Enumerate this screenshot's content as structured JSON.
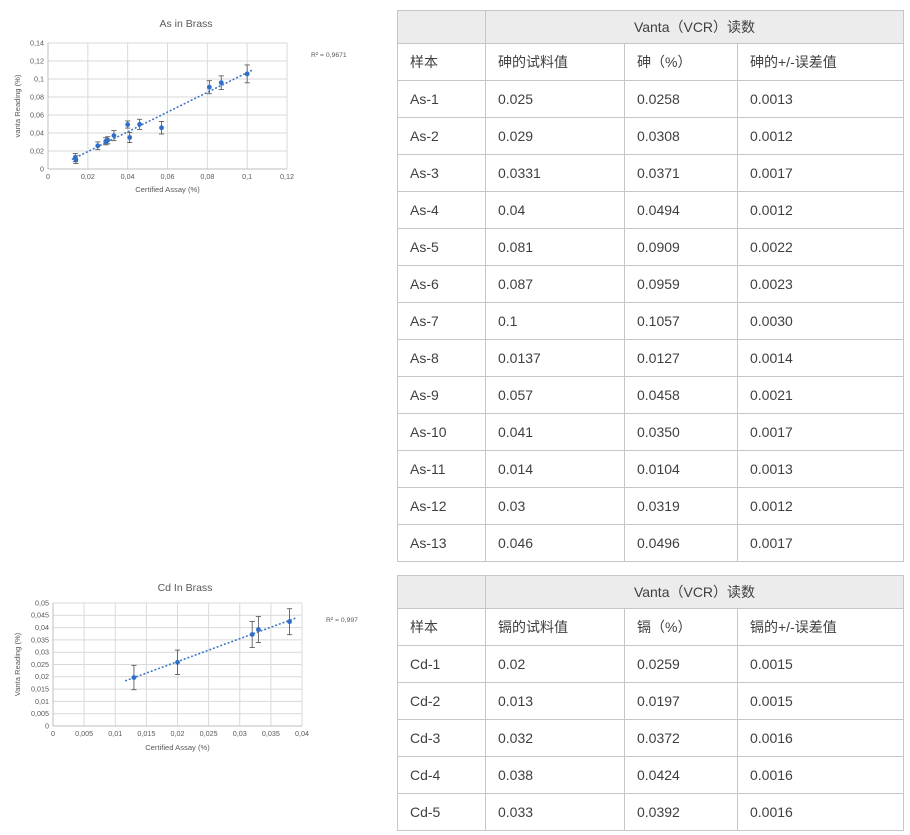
{
  "colors": {
    "page_bg": "#ffffff",
    "marker": "#2f6fc6",
    "trendline": "#3f79cc",
    "error_bar": "#5f5f5f",
    "gridline": "#d9d9d9",
    "axis_line": "#bfbfbf",
    "chart_text": "#595959",
    "table_border": "#c6c6c6",
    "table_header_bg": "#ececec",
    "table_text": "#3f3f3f"
  },
  "chart_data": [
    {
      "type": "scatter",
      "title": "As in Brass",
      "xlabel": "Certified Assay (%)",
      "ylabel": "vanta Reading (%)",
      "r_squared_label": "R² = 0,9671",
      "xlim": [
        0,
        0.12
      ],
      "ylim": [
        0,
        0.14
      ],
      "xtick_labels": [
        "0",
        "0,02",
        "0,04",
        "0,06",
        "0,08",
        "0,1",
        "0,12"
      ],
      "ytick_labels": [
        "0",
        "0,02",
        "0,04",
        "0,06",
        "0,08",
        "0,1",
        "0,12",
        "0,14"
      ],
      "grid": true,
      "legend": "none",
      "trendline": "linear-dotted",
      "error_bar_visual_scale": 3.3,
      "series": [
        {
          "name": "As in Brass",
          "samples": [
            "As-1",
            "As-2",
            "As-3",
            "As-4",
            "As-5",
            "As-6",
            "As-7",
            "As-8",
            "As-9",
            "As-10",
            "As-11",
            "As-12",
            "As-13"
          ],
          "x": [
            0.025,
            0.029,
            0.0331,
            0.04,
            0.081,
            0.087,
            0.1,
            0.0137,
            0.057,
            0.041,
            0.014,
            0.03,
            0.046
          ],
          "y": [
            0.0258,
            0.0308,
            0.0371,
            0.0494,
            0.0909,
            0.0959,
            0.1057,
            0.0127,
            0.0458,
            0.035,
            0.0104,
            0.0319,
            0.0496
          ],
          "yerr": [
            0.0013,
            0.0012,
            0.0017,
            0.0012,
            0.0022,
            0.0023,
            0.003,
            0.0014,
            0.0021,
            0.0017,
            0.0013,
            0.0012,
            0.0017
          ]
        }
      ]
    },
    {
      "type": "scatter",
      "title": "Cd In Brass",
      "xlabel": "Certified Assay (%)",
      "ylabel": "Vanta Reading (%)",
      "r_squared_label": "R² = 0,997",
      "xlim": [
        0,
        0.04
      ],
      "ylim": [
        0,
        0.05
      ],
      "xtick_labels": [
        "0",
        "0,005",
        "0,01",
        "0,015",
        "0,02",
        "0,025",
        "0,03",
        "0,035",
        "0,04"
      ],
      "ytick_labels": [
        "0",
        "0,005",
        "0,01",
        "0,015",
        "0,02",
        "0,025",
        "0,03",
        "0,035",
        "0,04",
        "0,045",
        "0,05"
      ],
      "grid": true,
      "legend": "none",
      "trendline": "linear-dotted",
      "error_bar_visual_scale": 3.3,
      "series": [
        {
          "name": "Cd In Brass",
          "samples": [
            "Cd-1",
            "Cd-2",
            "Cd-3",
            "Cd-4",
            "Cd-5"
          ],
          "x": [
            0.02,
            0.013,
            0.032,
            0.038,
            0.033
          ],
          "y": [
            0.0259,
            0.0197,
            0.0372,
            0.0424,
            0.0392
          ],
          "yerr": [
            0.0015,
            0.0015,
            0.0016,
            0.0016,
            0.0016
          ]
        }
      ]
    }
  ],
  "tables": [
    {
      "span_header": "Vanta（VCR）读数",
      "columns": [
        "样本",
        "砷的试料值",
        "砷（%）",
        "砷的+/-误差值"
      ],
      "rows": [
        [
          "As-1",
          "0.025",
          "0.0258",
          "0.0013"
        ],
        [
          "As-2",
          "0.029",
          "0.0308",
          "0.0012"
        ],
        [
          "As-3",
          "0.0331",
          "0.0371",
          "0.0017"
        ],
        [
          "As-4",
          "0.04",
          "0.0494",
          "0.0012"
        ],
        [
          "As-5",
          "0.081",
          "0.0909",
          "0.0022"
        ],
        [
          "As-6",
          "0.087",
          "0.0959",
          "0.0023"
        ],
        [
          "As-7",
          "0.1",
          "0.1057",
          "0.0030"
        ],
        [
          "As-8",
          "0.0137",
          "0.0127",
          "0.0014"
        ],
        [
          "As-9",
          "0.057",
          "0.0458",
          "0.0021"
        ],
        [
          "As-10",
          "0.041",
          "0.0350",
          "0.0017"
        ],
        [
          "As-11",
          "0.014",
          "0.0104",
          "0.0013"
        ],
        [
          "As-12",
          "0.03",
          "0.0319",
          "0.0012"
        ],
        [
          "As-13",
          "0.046",
          "0.0496",
          "0.0017"
        ]
      ]
    },
    {
      "span_header": "Vanta（VCR）读数",
      "columns": [
        "样本",
        "镉的试料值",
        "镉（%）",
        "镉的+/-误差值"
      ],
      "rows": [
        [
          "Cd-1",
          "0.02",
          "0.0259",
          "0.0015"
        ],
        [
          "Cd-2",
          "0.013",
          "0.0197",
          "0.0015"
        ],
        [
          "Cd-3",
          "0.032",
          "0.0372",
          "0.0016"
        ],
        [
          "Cd-4",
          "0.038",
          "0.0424",
          "0.0016"
        ],
        [
          "Cd-5",
          "0.033",
          "0.0392",
          "0.0016"
        ]
      ]
    }
  ]
}
